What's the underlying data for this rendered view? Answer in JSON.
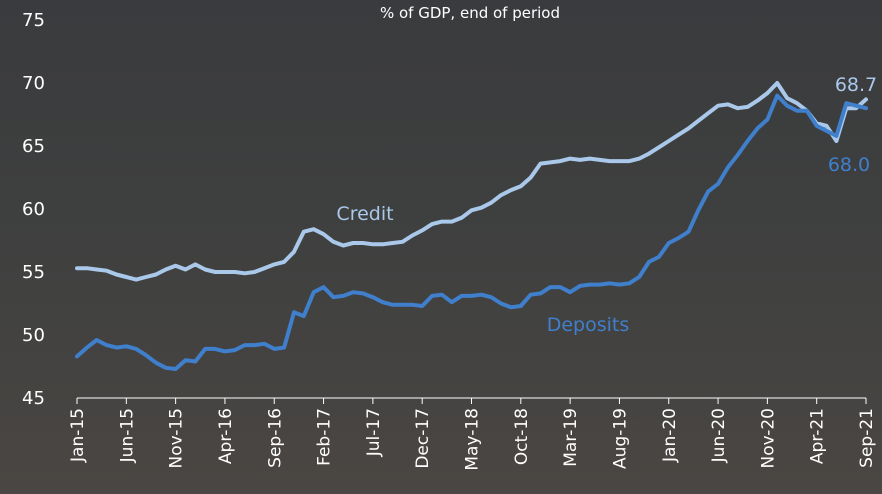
{
  "chart_data": {
    "type": "line",
    "subtitle": "% of GDP, end of period",
    "categories": [
      "Jan-15",
      null,
      null,
      null,
      null,
      "Jun-15",
      null,
      null,
      null,
      null,
      "Nov-15",
      null,
      null,
      null,
      null,
      "Apr-16",
      null,
      null,
      null,
      null,
      "Sep-16",
      null,
      null,
      null,
      null,
      "Feb-17",
      null,
      null,
      null,
      null,
      "Jul-17",
      null,
      null,
      null,
      null,
      "Dec-17",
      null,
      null,
      null,
      null,
      "May-18",
      null,
      null,
      null,
      null,
      "Oct-18",
      null,
      null,
      null,
      null,
      "Mar-19",
      null,
      null,
      null,
      null,
      "Aug-19",
      null,
      null,
      null,
      null,
      "Jan-20",
      null,
      null,
      null,
      null,
      "Jun-20",
      null,
      null,
      null,
      null,
      "Nov-20",
      null,
      null,
      null,
      null,
      "Apr-21",
      null,
      null,
      null,
      null,
      "Sep-21"
    ],
    "series": [
      {
        "name": "Credit",
        "color": "#a9c8ea",
        "values": [
          55.3,
          55.3,
          55.2,
          55.1,
          54.8,
          54.6,
          54.4,
          54.6,
          54.8,
          55.2,
          55.5,
          55.2,
          55.6,
          55.2,
          55.0,
          55.0,
          55.0,
          54.9,
          55.0,
          55.3,
          55.6,
          55.8,
          56.6,
          58.2,
          58.4,
          58.0,
          57.4,
          57.1,
          57.3,
          57.3,
          57.2,
          57.2,
          57.3,
          57.4,
          57.9,
          58.3,
          58.8,
          59.0,
          59.0,
          59.3,
          59.9,
          60.1,
          60.5,
          61.1,
          61.5,
          61.8,
          62.5,
          63.6,
          63.7,
          63.8,
          64.0,
          63.9,
          64.0,
          63.9,
          63.8,
          63.8,
          63.8,
          64.0,
          64.4,
          64.9,
          65.4,
          65.9,
          66.4,
          67.0,
          67.6,
          68.2,
          68.3,
          68.0,
          68.1,
          68.6,
          69.2,
          70.0,
          68.8,
          68.4,
          67.8,
          66.8,
          66.6,
          65.4,
          68.0,
          68.0,
          68.7
        ]
      },
      {
        "name": "Deposits",
        "color": "#3f7fcc",
        "values": [
          48.3,
          49.0,
          49.6,
          49.2,
          49.0,
          49.1,
          48.9,
          48.4,
          47.8,
          47.4,
          47.3,
          48.0,
          47.9,
          48.9,
          48.9,
          48.7,
          48.8,
          49.2,
          49.2,
          49.3,
          48.9,
          49.0,
          51.8,
          51.5,
          53.4,
          53.8,
          53.0,
          53.1,
          53.4,
          53.3,
          53.0,
          52.6,
          52.4,
          52.4,
          52.4,
          52.3,
          53.1,
          53.2,
          52.6,
          53.1,
          53.1,
          53.2,
          53.0,
          52.5,
          52.2,
          52.3,
          53.2,
          53.3,
          53.8,
          53.8,
          53.4,
          53.9,
          54.0,
          54.0,
          54.1,
          54.0,
          54.1,
          54.6,
          55.8,
          56.2,
          57.3,
          57.7,
          58.2,
          59.9,
          61.4,
          62.0,
          63.3,
          64.3,
          65.4,
          66.4,
          67.1,
          69.0,
          68.2,
          67.8,
          67.8,
          66.6,
          66.2,
          65.8,
          68.4,
          68.2,
          68.0
        ]
      }
    ],
    "annotations": [
      "Credit",
      "Deposits",
      "68.7",
      "68.0"
    ],
    "ylim": [
      45,
      75
    ],
    "yticks": [
      45,
      50,
      55,
      60,
      65,
      70,
      75
    ],
    "grid": false
  }
}
